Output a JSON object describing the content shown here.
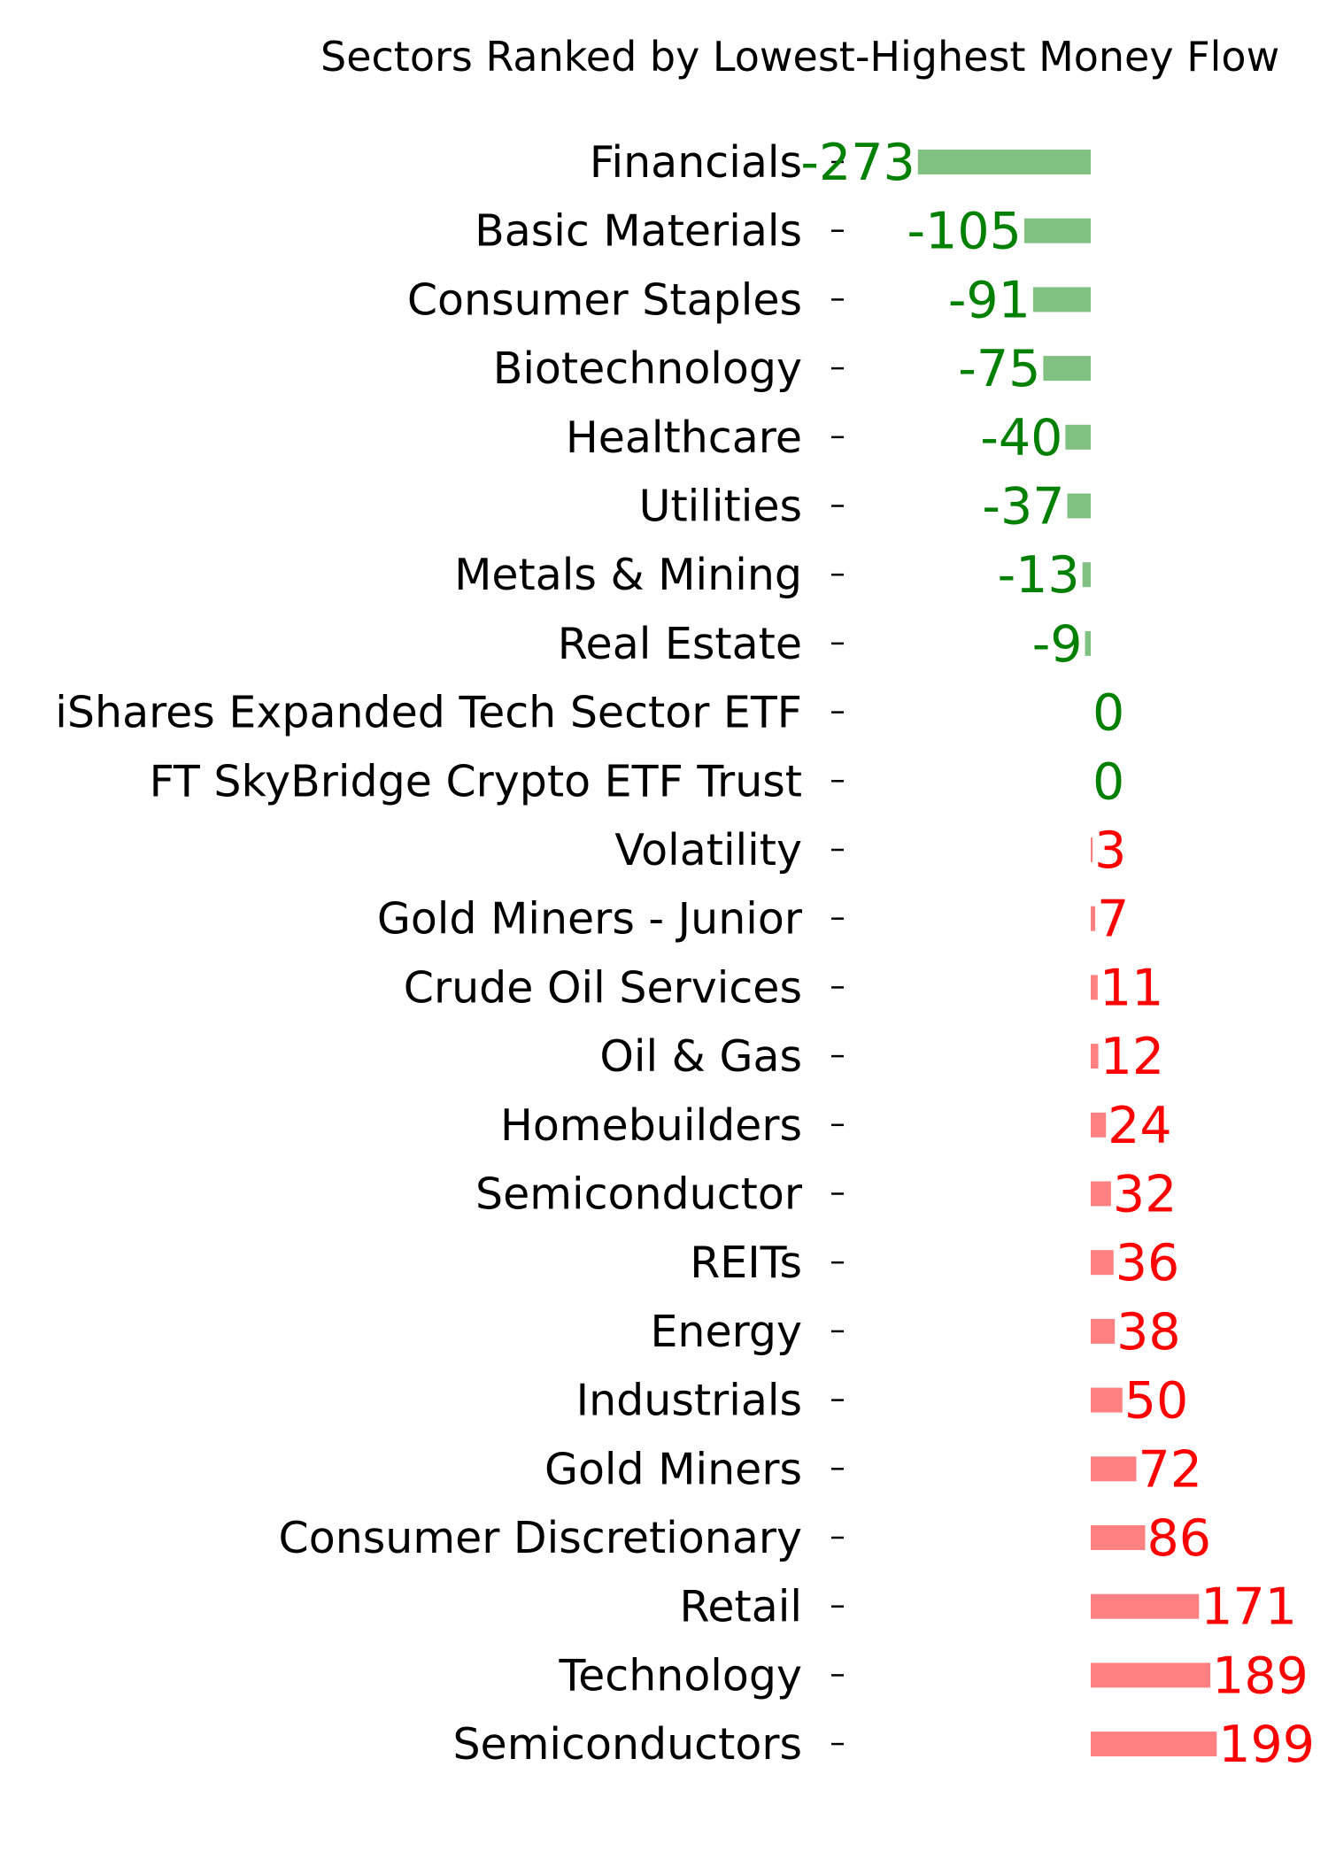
{
  "chart_data": {
    "type": "bar",
    "orientation": "horizontal",
    "title": "Sectors Ranked by Lowest-Highest Money Flow",
    "xlabel": "",
    "ylabel": "",
    "grid": false,
    "legend": "none",
    "categories": [
      "Financials",
      "Basic Materials",
      "Consumer Staples",
      "Biotechnology",
      "Healthcare",
      "Utilities",
      "Metals & Mining",
      "Real Estate",
      "iShares Expanded Tech Sector ETF",
      "FT SkyBridge Crypto ETF Trust",
      "Volatility",
      "Gold Miners - Junior",
      "Crude Oil Services",
      "Oil & Gas",
      "Homebuilders",
      "Semiconductor",
      "REITs",
      "Energy",
      "Industrials",
      "Gold Miners",
      "Consumer Discretionary",
      "Retail",
      "Technology",
      "Semiconductors"
    ],
    "values": [
      -273,
      -105,
      -91,
      -75,
      -40,
      -37,
      -13,
      -9,
      0,
      0,
      3,
      7,
      11,
      12,
      24,
      32,
      36,
      38,
      50,
      72,
      86,
      171,
      189,
      199
    ],
    "data_labels": [
      "-273",
      "-105",
      "-91",
      "-75",
      "-40",
      "-37",
      "-13",
      "-9",
      "0",
      "0",
      "3",
      "7",
      "11",
      "12",
      "24",
      "32",
      "36",
      "38",
      "50",
      "72",
      "86",
      "171",
      "189",
      "199"
    ],
    "colors": {
      "negative_bar": "#80c080",
      "negative_label": "#008000",
      "positive_bar": "#ff8080",
      "positive_label": "#ff0000"
    }
  }
}
